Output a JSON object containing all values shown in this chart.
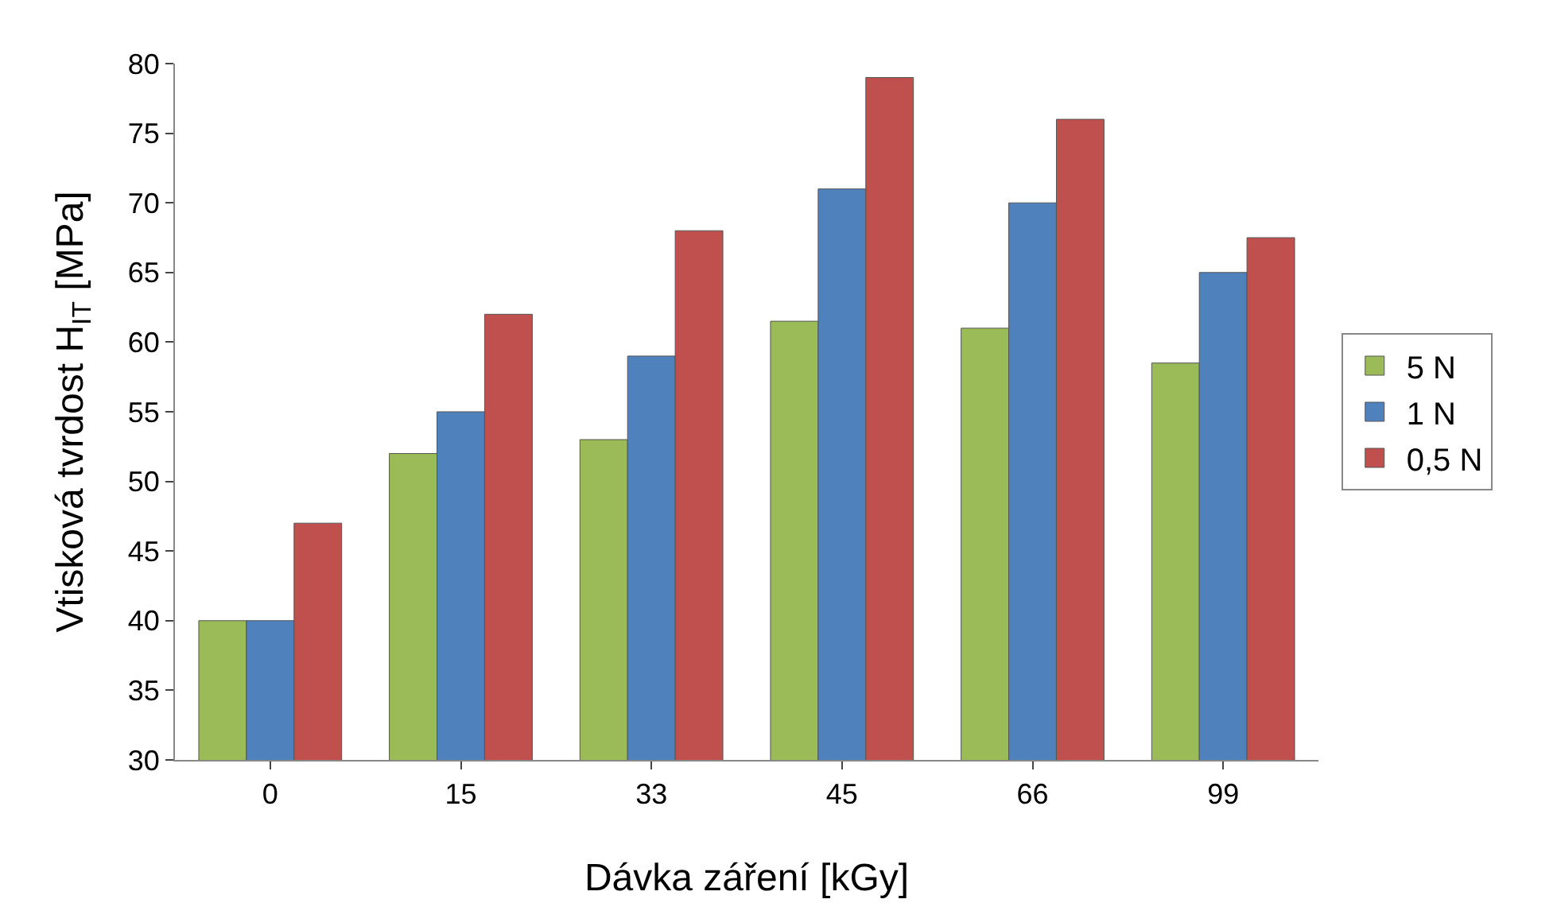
{
  "chart_data": {
    "type": "bar",
    "xlabel": "Dávka záření [kGy]",
    "ylabel": "Vtisková tvrdost H$_{IT}$ [MPa]",
    "categories": [
      "0",
      "15",
      "33",
      "45",
      "66",
      "99"
    ],
    "series": [
      {
        "name": "5 N",
        "color": "#9bbb59",
        "values": [
          40,
          52,
          53,
          61.5,
          61,
          58.5
        ]
      },
      {
        "name": "1 N",
        "color": "#4f81bd",
        "values": [
          40,
          55,
          59,
          71,
          70,
          65
        ]
      },
      {
        "name": "0,5 N",
        "color": "#c0504d",
        "values": [
          47,
          62,
          68,
          79,
          76,
          67.5
        ]
      }
    ],
    "ylim": [
      30,
      80
    ],
    "yticks": [
      30,
      35,
      40,
      45,
      50,
      55,
      60,
      65,
      70,
      75,
      80
    ],
    "grid": false,
    "legend": "right"
  }
}
